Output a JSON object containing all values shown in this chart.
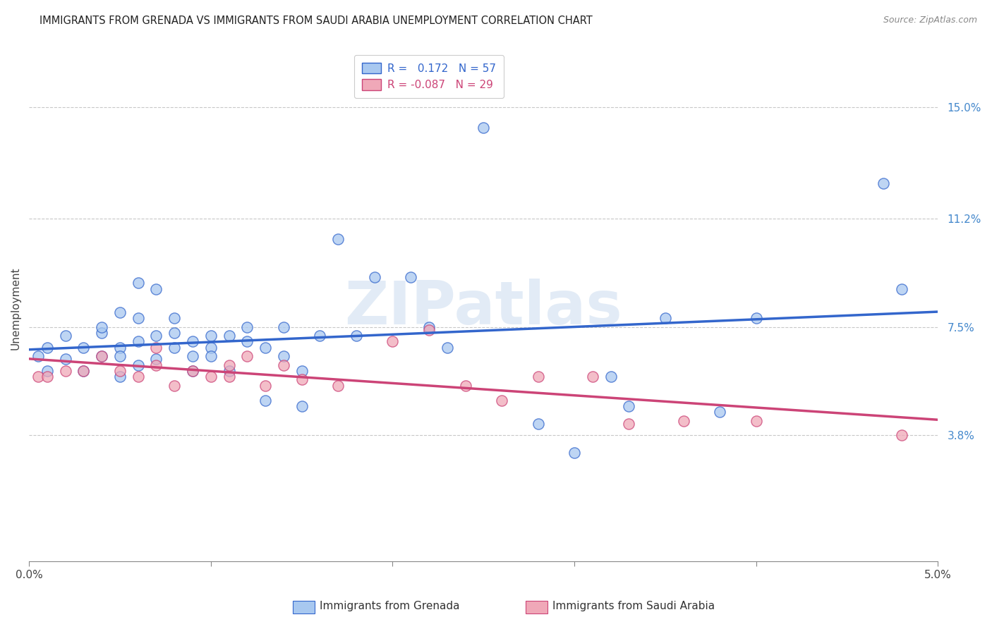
{
  "title": "IMMIGRANTS FROM GRENADA VS IMMIGRANTS FROM SAUDI ARABIA UNEMPLOYMENT CORRELATION CHART",
  "source": "Source: ZipAtlas.com",
  "ylabel": "Unemployment",
  "ytick_labels": [
    "15.0%",
    "11.2%",
    "7.5%",
    "3.8%"
  ],
  "ytick_values": [
    0.15,
    0.112,
    0.075,
    0.038
  ],
  "xmin": 0.0,
  "xmax": 0.05,
  "ymin": -0.005,
  "ymax": 0.168,
  "color_grenada": "#a8c8f0",
  "color_saudi": "#f0a8b8",
  "line_color_grenada": "#3366cc",
  "line_color_saudi": "#cc4477",
  "watermark": "ZIPatlas",
  "grenada_x": [
    0.0005,
    0.001,
    0.001,
    0.002,
    0.002,
    0.003,
    0.003,
    0.004,
    0.004,
    0.004,
    0.005,
    0.005,
    0.005,
    0.005,
    0.006,
    0.006,
    0.006,
    0.006,
    0.007,
    0.007,
    0.007,
    0.008,
    0.008,
    0.008,
    0.009,
    0.009,
    0.009,
    0.01,
    0.01,
    0.01,
    0.011,
    0.011,
    0.012,
    0.012,
    0.013,
    0.013,
    0.014,
    0.014,
    0.015,
    0.015,
    0.016,
    0.017,
    0.018,
    0.019,
    0.021,
    0.022,
    0.023,
    0.025,
    0.028,
    0.03,
    0.032,
    0.033,
    0.035,
    0.038,
    0.04,
    0.047,
    0.048
  ],
  "grenada_y": [
    0.065,
    0.06,
    0.068,
    0.064,
    0.072,
    0.06,
    0.068,
    0.073,
    0.065,
    0.075,
    0.068,
    0.065,
    0.058,
    0.08,
    0.09,
    0.078,
    0.07,
    0.062,
    0.088,
    0.072,
    0.064,
    0.078,
    0.073,
    0.068,
    0.07,
    0.065,
    0.06,
    0.072,
    0.068,
    0.065,
    0.072,
    0.06,
    0.075,
    0.07,
    0.068,
    0.05,
    0.075,
    0.065,
    0.06,
    0.048,
    0.072,
    0.105,
    0.072,
    0.092,
    0.092,
    0.075,
    0.068,
    0.143,
    0.042,
    0.032,
    0.058,
    0.048,
    0.078,
    0.046,
    0.078,
    0.124,
    0.088
  ],
  "saudi_x": [
    0.0005,
    0.001,
    0.002,
    0.003,
    0.004,
    0.005,
    0.006,
    0.007,
    0.007,
    0.008,
    0.009,
    0.01,
    0.011,
    0.011,
    0.012,
    0.013,
    0.014,
    0.015,
    0.017,
    0.02,
    0.022,
    0.024,
    0.026,
    0.028,
    0.031,
    0.033,
    0.036,
    0.04,
    0.048
  ],
  "saudi_y": [
    0.058,
    0.058,
    0.06,
    0.06,
    0.065,
    0.06,
    0.058,
    0.062,
    0.068,
    0.055,
    0.06,
    0.058,
    0.058,
    0.062,
    0.065,
    0.055,
    0.062,
    0.057,
    0.055,
    0.07,
    0.074,
    0.055,
    0.05,
    0.058,
    0.058,
    0.042,
    0.043,
    0.043,
    0.038
  ]
}
